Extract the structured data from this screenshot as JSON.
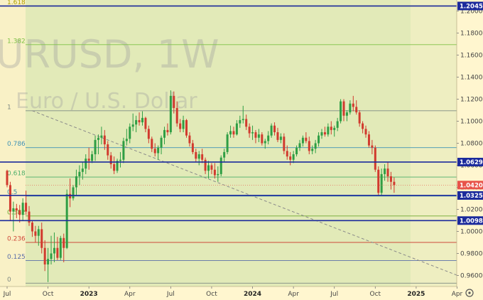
{
  "watermark": {
    "line1": "URUSD, 1W",
    "line2": "Euro / U.S. Dollar"
  },
  "colors": {
    "plot_bg": "#e2eab8",
    "future_bg": "#f6f0c6",
    "left_band": "#f9f1c6",
    "axis_bg": "#fff6cf",
    "bull": "#2f9e44",
    "bear": "#d13a2e",
    "blue_line": "#1b2a9c",
    "last_price_box": "#e8534a"
  },
  "chart_data": {
    "type": "candlestick",
    "ylim": [
      0.95,
      1.21
    ],
    "y_ticks": [
      0.96,
      0.98,
      1.0,
      1.02,
      1.04,
      1.06,
      1.08,
      1.1,
      1.12,
      1.14,
      1.16,
      1.18,
      1.2
    ],
    "y_tick_labels": [
      "0.96000",
      "0.98000",
      "1.00000",
      "1.02000",
      "1.04000",
      "1.06000",
      "1.08000",
      "1.10000",
      "1.12000",
      "1.14000",
      "1.16000",
      "1.18000",
      "1.20000"
    ],
    "x_labels": [
      {
        "label": "Jul",
        "week": 0
      },
      {
        "label": "Oct",
        "week": 13
      },
      {
        "label": "2023",
        "week": 26,
        "bold": true
      },
      {
        "label": "Apr",
        "week": 39
      },
      {
        "label": "Jul",
        "week": 52
      },
      {
        "label": "Oct",
        "week": 65
      },
      {
        "label": "2024",
        "week": 78,
        "bold": true
      },
      {
        "label": "Apr",
        "week": 91
      },
      {
        "label": "Jul",
        "week": 104
      },
      {
        "label": "Oct",
        "week": 117
      },
      {
        "label": "2025",
        "week": 130,
        "bold": true
      },
      {
        "label": "Apr",
        "week": 143
      }
    ],
    "fib_levels": [
      {
        "label": "1.618",
        "value": 1.2046,
        "color": "#b2a000"
      },
      {
        "label": "1.382",
        "value": 1.1695,
        "color": "#7ec245"
      },
      {
        "label": "1",
        "value": 1.1095,
        "color": "#7f8a83"
      },
      {
        "label": "0.786",
        "value": 1.076,
        "color": "#3f93b5"
      },
      {
        "label": "0.618",
        "value": 1.0493,
        "color": "#4caf6a"
      },
      {
        "label": "0.5",
        "value": 1.0321,
        "color": "#3f8fa8"
      },
      {
        "label": "0.382",
        "value": 1.014,
        "color": "#6fa830"
      },
      {
        "label": "0.236",
        "value": 0.99,
        "color": "#cf4a3a"
      },
      {
        "label": "0.125",
        "value": 0.9735,
        "color": "#5a6ea8"
      },
      {
        "label": "0",
        "value": 0.953,
        "color": "#7f8a83"
      }
    ],
    "horizontal_lines": [
      {
        "value": 1.20456,
        "label": "1.20456"
      },
      {
        "value": 1.06293,
        "label": "1.06293"
      },
      {
        "value": 1.03259,
        "label": "1.03259"
      },
      {
        "value": 1.00982,
        "label": "1.00982"
      }
    ],
    "last_price": {
      "value": 1.04205,
      "label": "1.04205"
    },
    "trendline": {
      "start": {
        "week": 8,
        "price": 1.1095
      },
      "end": {
        "week": 145,
        "price": 0.958
      }
    },
    "candles": [
      [
        1.055,
        1.056,
        1.04,
        1.042
      ],
      [
        1.042,
        1.045,
        1.01,
        1.018
      ],
      [
        1.018,
        1.027,
        1.0,
        1.021
      ],
      [
        1.021,
        1.025,
        1.012,
        1.019
      ],
      [
        1.019,
        1.024,
        1.008,
        1.015
      ],
      [
        1.015,
        1.03,
        1.01,
        1.026
      ],
      [
        1.026,
        1.037,
        1.015,
        1.018
      ],
      [
        1.018,
        1.023,
        1.005,
        1.008
      ],
      [
        1.008,
        1.01,
        0.995,
        1.0
      ],
      [
        1.0,
        1.005,
        0.99,
        0.996
      ],
      [
        0.996,
        1.005,
        0.987,
        1.002
      ],
      [
        1.002,
        1.008,
        0.98,
        0.985
      ],
      [
        0.985,
        0.992,
        0.964,
        0.97
      ],
      [
        0.97,
        0.985,
        0.954,
        0.975
      ],
      [
        0.975,
        0.996,
        0.97,
        0.98
      ],
      [
        0.98,
        0.999,
        0.972,
        0.985
      ],
      [
        0.985,
        0.995,
        0.974,
        0.976
      ],
      [
        0.976,
        0.996,
        0.974,
        0.994
      ],
      [
        0.994,
        0.998,
        0.972,
        0.985
      ],
      [
        0.985,
        1.038,
        0.984,
        1.034
      ],
      [
        1.034,
        1.048,
        1.022,
        1.03
      ],
      [
        1.03,
        1.042,
        1.028,
        1.04
      ],
      [
        1.04,
        1.056,
        1.033,
        1.05
      ],
      [
        1.05,
        1.06,
        1.042,
        1.054
      ],
      [
        1.054,
        1.063,
        1.047,
        1.057
      ],
      [
        1.057,
        1.07,
        1.052,
        1.066
      ],
      [
        1.066,
        1.076,
        1.056,
        1.064
      ],
      [
        1.064,
        1.073,
        1.062,
        1.07
      ],
      [
        1.07,
        1.087,
        1.064,
        1.083
      ],
      [
        1.083,
        1.088,
        1.07,
        1.085
      ],
      [
        1.085,
        1.095,
        1.079,
        1.087
      ],
      [
        1.087,
        1.092,
        1.074,
        1.079
      ],
      [
        1.079,
        1.082,
        1.065,
        1.069
      ],
      [
        1.069,
        1.072,
        1.057,
        1.061
      ],
      [
        1.061,
        1.068,
        1.052,
        1.055
      ],
      [
        1.055,
        1.066,
        1.053,
        1.064
      ],
      [
        1.064,
        1.072,
        1.058,
        1.065
      ],
      [
        1.065,
        1.085,
        1.062,
        1.082
      ],
      [
        1.082,
        1.093,
        1.078,
        1.084
      ],
      [
        1.084,
        1.098,
        1.08,
        1.095
      ],
      [
        1.095,
        1.107,
        1.091,
        1.097
      ],
      [
        1.097,
        1.105,
        1.09,
        1.101
      ],
      [
        1.101,
        1.108,
        1.096,
        1.099
      ],
      [
        1.099,
        1.109,
        1.096,
        1.103
      ],
      [
        1.103,
        1.104,
        1.09,
        1.093
      ],
      [
        1.093,
        1.096,
        1.08,
        1.084
      ],
      [
        1.084,
        1.086,
        1.072,
        1.075
      ],
      [
        1.075,
        1.08,
        1.068,
        1.071
      ],
      [
        1.071,
        1.078,
        1.065,
        1.076
      ],
      [
        1.076,
        1.087,
        1.07,
        1.085
      ],
      [
        1.085,
        1.095,
        1.079,
        1.092
      ],
      [
        1.092,
        1.098,
        1.087,
        1.09
      ],
      [
        1.09,
        1.128,
        1.088,
        1.123
      ],
      [
        1.123,
        1.127,
        1.107,
        1.112
      ],
      [
        1.112,
        1.118,
        1.095,
        1.098
      ],
      [
        1.098,
        1.102,
        1.09,
        1.093
      ],
      [
        1.093,
        1.105,
        1.09,
        1.101
      ],
      [
        1.101,
        1.102,
        1.085,
        1.087
      ],
      [
        1.087,
        1.09,
        1.077,
        1.08
      ],
      [
        1.08,
        1.083,
        1.07,
        1.072
      ],
      [
        1.072,
        1.075,
        1.063,
        1.066
      ],
      [
        1.066,
        1.073,
        1.06,
        1.07
      ],
      [
        1.07,
        1.075,
        1.062,
        1.065
      ],
      [
        1.065,
        1.067,
        1.052,
        1.055
      ],
      [
        1.055,
        1.064,
        1.048,
        1.06
      ],
      [
        1.06,
        1.062,
        1.052,
        1.056
      ],
      [
        1.056,
        1.062,
        1.048,
        1.051
      ],
      [
        1.051,
        1.059,
        1.045,
        1.052
      ],
      [
        1.052,
        1.069,
        1.05,
        1.067
      ],
      [
        1.067,
        1.075,
        1.063,
        1.072
      ],
      [
        1.072,
        1.09,
        1.07,
        1.088
      ],
      [
        1.088,
        1.096,
        1.085,
        1.091
      ],
      [
        1.091,
        1.095,
        1.085,
        1.088
      ],
      [
        1.088,
        1.101,
        1.087,
        1.098
      ],
      [
        1.098,
        1.105,
        1.094,
        1.101
      ],
      [
        1.101,
        1.114,
        1.098,
        1.102
      ],
      [
        1.102,
        1.106,
        1.092,
        1.095
      ],
      [
        1.095,
        1.098,
        1.085,
        1.089
      ],
      [
        1.089,
        1.096,
        1.083,
        1.09
      ],
      [
        1.09,
        1.092,
        1.08,
        1.085
      ],
      [
        1.085,
        1.093,
        1.081,
        1.088
      ],
      [
        1.088,
        1.09,
        1.078,
        1.08
      ],
      [
        1.08,
        1.084,
        1.075,
        1.082
      ],
      [
        1.082,
        1.091,
        1.079,
        1.087
      ],
      [
        1.087,
        1.098,
        1.085,
        1.096
      ],
      [
        1.096,
        1.099,
        1.087,
        1.09
      ],
      [
        1.09,
        1.094,
        1.081,
        1.083
      ],
      [
        1.083,
        1.089,
        1.08,
        1.086
      ],
      [
        1.086,
        1.089,
        1.07,
        1.073
      ],
      [
        1.073,
        1.078,
        1.065,
        1.068
      ],
      [
        1.068,
        1.072,
        1.06,
        1.065
      ],
      [
        1.065,
        1.073,
        1.062,
        1.07
      ],
      [
        1.07,
        1.078,
        1.068,
        1.076
      ],
      [
        1.076,
        1.083,
        1.073,
        1.08
      ],
      [
        1.08,
        1.087,
        1.077,
        1.085
      ],
      [
        1.085,
        1.09,
        1.08,
        1.082
      ],
      [
        1.082,
        1.086,
        1.07,
        1.073
      ],
      [
        1.073,
        1.078,
        1.07,
        1.075
      ],
      [
        1.075,
        1.083,
        1.071,
        1.08
      ],
      [
        1.08,
        1.09,
        1.077,
        1.087
      ],
      [
        1.087,
        1.093,
        1.084,
        1.09
      ],
      [
        1.09,
        1.095,
        1.086,
        1.088
      ],
      [
        1.088,
        1.098,
        1.086,
        1.095
      ],
      [
        1.095,
        1.1,
        1.088,
        1.092
      ],
      [
        1.092,
        1.096,
        1.086,
        1.094
      ],
      [
        1.094,
        1.103,
        1.091,
        1.1
      ],
      [
        1.1,
        1.12,
        1.098,
        1.118
      ],
      [
        1.118,
        1.12,
        1.1,
        1.105
      ],
      [
        1.105,
        1.11,
        1.1,
        1.108
      ],
      [
        1.108,
        1.119,
        1.106,
        1.116
      ],
      [
        1.116,
        1.123,
        1.109,
        1.113
      ],
      [
        1.113,
        1.119,
        1.106,
        1.108
      ],
      [
        1.108,
        1.11,
        1.095,
        1.098
      ],
      [
        1.098,
        1.1,
        1.089,
        1.093
      ],
      [
        1.093,
        1.096,
        1.085,
        1.088
      ],
      [
        1.088,
        1.091,
        1.076,
        1.078
      ],
      [
        1.078,
        1.083,
        1.07,
        1.076
      ],
      [
        1.076,
        1.078,
        1.054,
        1.056
      ],
      [
        1.056,
        1.059,
        1.033,
        1.035
      ],
      [
        1.035,
        1.057,
        1.033,
        1.052
      ],
      [
        1.052,
        1.061,
        1.046,
        1.057
      ],
      [
        1.057,
        1.063,
        1.045,
        1.05
      ],
      [
        1.05,
        1.054,
        1.038,
        1.045
      ],
      [
        1.045,
        1.049,
        1.035,
        1.042
      ]
    ]
  }
}
